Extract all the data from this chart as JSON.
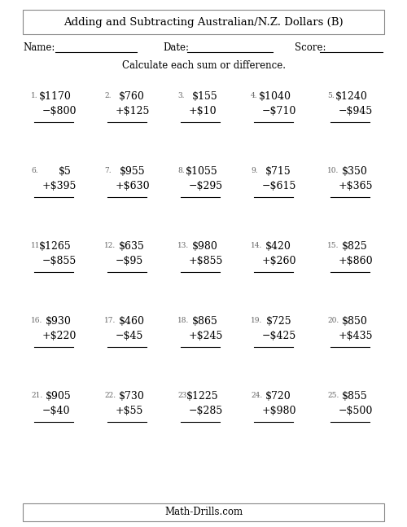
{
  "title": "Adding and Subtracting Australian/N.Z. Dollars (B)",
  "instruction": "Calculate each sum or difference.",
  "footer": "Math-Drills.com",
  "name_label": "Name:",
  "date_label": "Date:",
  "score_label": "Score:",
  "problems": [
    {
      "num": 1,
      "top": "$1170",
      "op": "−",
      "bot": "$800"
    },
    {
      "num": 2,
      "top": "$760",
      "op": "+",
      "bot": "$125"
    },
    {
      "num": 3,
      "top": "$155",
      "op": "+",
      "bot": "$10"
    },
    {
      "num": 4,
      "top": "$1040",
      "op": "−",
      "bot": "$710"
    },
    {
      "num": 5,
      "top": "$1240",
      "op": "−",
      "bot": "$945"
    },
    {
      "num": 6,
      "top": "$5",
      "op": "+",
      "bot": "$395"
    },
    {
      "num": 7,
      "top": "$955",
      "op": "+",
      "bot": "$630"
    },
    {
      "num": 8,
      "top": "$1055",
      "op": "−",
      "bot": "$295"
    },
    {
      "num": 9,
      "top": "$715",
      "op": "−",
      "bot": "$615"
    },
    {
      "num": 10,
      "top": "$350",
      "op": "+",
      "bot": "$365"
    },
    {
      "num": 11,
      "top": "$1265",
      "op": "−",
      "bot": "$855"
    },
    {
      "num": 12,
      "top": "$635",
      "op": "−",
      "bot": "$95"
    },
    {
      "num": 13,
      "top": "$980",
      "op": "+",
      "bot": "$855"
    },
    {
      "num": 14,
      "top": "$420",
      "op": "+",
      "bot": "$260"
    },
    {
      "num": 15,
      "top": "$825",
      "op": "+",
      "bot": "$860"
    },
    {
      "num": 16,
      "top": "$930",
      "op": "+",
      "bot": "$220"
    },
    {
      "num": 17,
      "top": "$460",
      "op": "−",
      "bot": "$45"
    },
    {
      "num": 18,
      "top": "$865",
      "op": "+",
      "bot": "$245"
    },
    {
      "num": 19,
      "top": "$725",
      "op": "−",
      "bot": "$425"
    },
    {
      "num": 20,
      "top": "$850",
      "op": "+",
      "bot": "$435"
    },
    {
      "num": 21,
      "top": "$905",
      "op": "−",
      "bot": "$40"
    },
    {
      "num": 22,
      "top": "$730",
      "op": "+",
      "bot": "$55"
    },
    {
      "num": 23,
      "top": "$1225",
      "op": "−",
      "bot": "$285"
    },
    {
      "num": 24,
      "top": "$720",
      "op": "+",
      "bot": "$980"
    },
    {
      "num": 25,
      "top": "$855",
      "op": "−",
      "bot": "$500"
    }
  ],
  "bg_color": "#ffffff",
  "text_color": "#000000",
  "title_fontsize": 9.5,
  "problem_fontsize": 9,
  "num_fontsize": 6.5,
  "header_fontsize": 8.5,
  "footer_fontsize": 8.5
}
